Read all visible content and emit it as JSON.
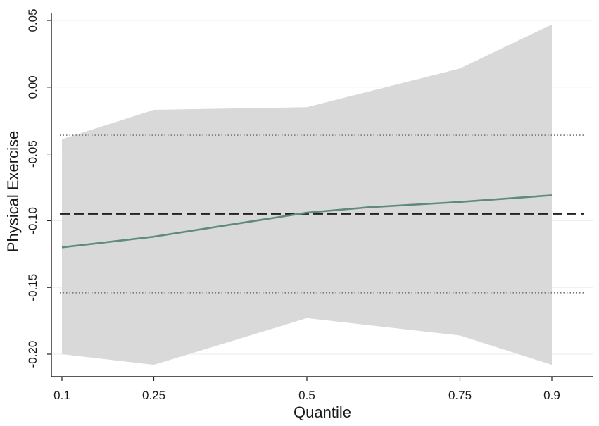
{
  "chart_data": {
    "type": "line",
    "xlabel": "Quantile",
    "ylabel": "Physical Exercise",
    "xlim": [
      0.1,
      0.9
    ],
    "ylim": [
      -0.2,
      0.05
    ],
    "x_ticks": [
      "0.1",
      "0.25",
      "0.5",
      "0.75",
      "0.9"
    ],
    "y_ticks": [
      "-0.20",
      "-0.15",
      "-0.10",
      "-0.05",
      "0.00",
      "0.05"
    ],
    "grid": true,
    "legend": "none",
    "colors": {
      "band": "#d9d9d9",
      "line": "#5f8a7e",
      "ols": "#222222",
      "ols_ci": "#777777",
      "grid": "#e2efec",
      "axis": "#222222"
    },
    "series": [
      {
        "type": "line",
        "x": [
          0.1,
          0.25,
          0.5,
          0.6,
          0.75,
          0.9
        ],
        "values": [
          -0.12,
          -0.112,
          -0.094,
          -0.09,
          -0.086,
          -0.081
        ]
      },
      {
        "type": "band",
        "x": [
          0.1,
          0.25,
          0.5,
          0.75,
          0.9
        ],
        "upper": [
          -0.039,
          -0.017,
          -0.015,
          0.014,
          0.047
        ],
        "lower": [
          -0.2,
          -0.208,
          -0.173,
          -0.186,
          -0.208
        ]
      },
      {
        "type": "hline",
        "style": "dashed",
        "y": -0.095
      },
      {
        "type": "hline",
        "style": "dotted",
        "y": -0.036
      },
      {
        "type": "hline",
        "style": "dotted",
        "y": -0.154
      }
    ]
  }
}
